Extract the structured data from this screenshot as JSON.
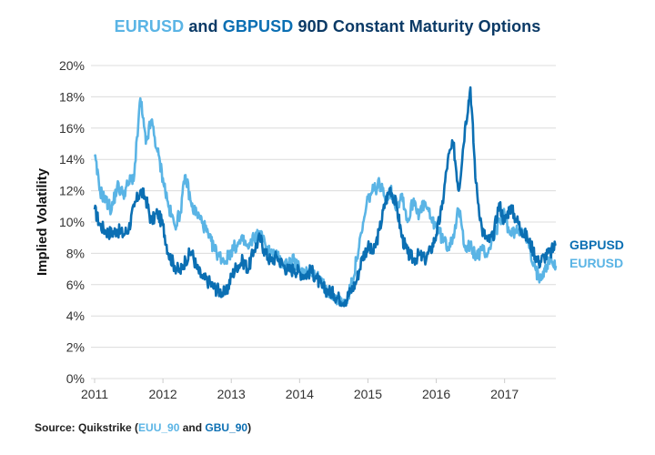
{
  "chart_data": {
    "type": "line",
    "title_parts": [
      {
        "text": "EURUSD",
        "series": "EURUSD"
      },
      {
        "text": " and ",
        "series": null
      },
      {
        "text": "GBPUSD",
        "series": "GBPUSD"
      },
      {
        "text": " 90D Constant Maturity Options",
        "series": null
      }
    ],
    "title": "EURUSD and GBPUSD 90D Constant Maturity Options",
    "xlabel": "",
    "ylabel": "Implied Volatility",
    "ylim": [
      0,
      20
    ],
    "xlim": [
      2011,
      2017.75
    ],
    "yticks": [
      "0%",
      "2%",
      "4%",
      "6%",
      "8%",
      "10%",
      "12%",
      "14%",
      "16%",
      "18%",
      "20%"
    ],
    "ytick_values": [
      0,
      2,
      4,
      6,
      8,
      10,
      12,
      14,
      16,
      18,
      20
    ],
    "xticks": [
      "2011",
      "2012",
      "2013",
      "2014",
      "2015",
      "2016",
      "2017"
    ],
    "xtick_values": [
      2011,
      2012,
      2013,
      2014,
      2015,
      2016,
      2017
    ],
    "grid": true,
    "legend_placement": "right",
    "series": [
      {
        "name": "GBPUSD",
        "color": "#0b6fb3",
        "x": [
          2011.0,
          2011.08,
          2011.17,
          2011.25,
          2011.33,
          2011.42,
          2011.5,
          2011.58,
          2011.67,
          2011.75,
          2011.83,
          2011.92,
          2012.0,
          2012.08,
          2012.17,
          2012.25,
          2012.33,
          2012.42,
          2012.5,
          2012.58,
          2012.67,
          2012.75,
          2012.83,
          2012.92,
          2013.0,
          2013.08,
          2013.17,
          2013.25,
          2013.33,
          2013.42,
          2013.5,
          2013.58,
          2013.67,
          2013.75,
          2013.83,
          2013.92,
          2014.0,
          2014.08,
          2014.17,
          2014.25,
          2014.33,
          2014.42,
          2014.5,
          2014.58,
          2014.67,
          2014.75,
          2014.83,
          2014.92,
          2015.0,
          2015.08,
          2015.17,
          2015.25,
          2015.33,
          2015.42,
          2015.5,
          2015.58,
          2015.67,
          2015.75,
          2015.83,
          2015.92,
          2016.0,
          2016.08,
          2016.17,
          2016.25,
          2016.33,
          2016.42,
          2016.5,
          2016.58,
          2016.67,
          2016.75,
          2016.83,
          2016.92,
          2017.0,
          2017.08,
          2017.17,
          2017.25,
          2017.33,
          2017.42,
          2017.5,
          2017.58,
          2017.67,
          2017.75
        ],
        "values": [
          10.8,
          9.8,
          9.4,
          9.3,
          9.5,
          9.2,
          9.6,
          11.0,
          12.0,
          11.5,
          10.0,
          10.6,
          9.8,
          8.0,
          7.2,
          6.8,
          7.6,
          8.1,
          7.0,
          6.4,
          6.2,
          5.8,
          5.6,
          5.4,
          6.5,
          7.2,
          7.5,
          7.0,
          8.2,
          9.0,
          8.0,
          7.5,
          7.8,
          7.3,
          6.9,
          7.0,
          6.8,
          6.6,
          6.9,
          6.4,
          5.8,
          5.6,
          5.4,
          5.1,
          5.0,
          5.6,
          6.2,
          7.8,
          8.4,
          8.0,
          9.5,
          11.2,
          12.2,
          11.0,
          9.0,
          8.0,
          7.6,
          7.9,
          7.6,
          8.2,
          9.2,
          10.8,
          14.0,
          15.0,
          12.0,
          16.0,
          18.6,
          12.5,
          9.5,
          8.8,
          9.0,
          11.2,
          10.0,
          11.0,
          10.2,
          9.5,
          9.0,
          8.2,
          7.4,
          7.8,
          8.0,
          8.6
        ]
      },
      {
        "name": "EURUSD",
        "color": "#5ab4e5",
        "x": [
          2011.0,
          2011.08,
          2011.17,
          2011.25,
          2011.33,
          2011.42,
          2011.5,
          2011.58,
          2011.67,
          2011.75,
          2011.83,
          2011.92,
          2012.0,
          2012.08,
          2012.17,
          2012.25,
          2012.33,
          2012.42,
          2012.5,
          2012.58,
          2012.67,
          2012.75,
          2012.83,
          2012.92,
          2013.0,
          2013.08,
          2013.17,
          2013.25,
          2013.33,
          2013.42,
          2013.5,
          2013.58,
          2013.67,
          2013.75,
          2013.83,
          2013.92,
          2014.0,
          2014.08,
          2014.17,
          2014.25,
          2014.33,
          2014.42,
          2014.5,
          2014.58,
          2014.67,
          2014.75,
          2014.83,
          2014.92,
          2015.0,
          2015.08,
          2015.17,
          2015.25,
          2015.33,
          2015.42,
          2015.5,
          2015.58,
          2015.67,
          2015.75,
          2015.83,
          2015.92,
          2016.0,
          2016.08,
          2016.17,
          2016.25,
          2016.33,
          2016.42,
          2016.5,
          2016.58,
          2016.67,
          2016.75,
          2016.83,
          2016.92,
          2017.0,
          2017.08,
          2017.17,
          2017.25,
          2017.33,
          2017.42,
          2017.5,
          2017.58,
          2017.67,
          2017.75
        ],
        "values": [
          14.2,
          12.0,
          11.3,
          10.8,
          12.3,
          11.8,
          12.5,
          13.0,
          17.9,
          15.0,
          16.5,
          14.5,
          12.8,
          11.0,
          9.8,
          10.5,
          13.0,
          11.0,
          10.5,
          10.0,
          9.0,
          8.3,
          7.8,
          7.5,
          8.2,
          8.5,
          8.8,
          8.3,
          9.0,
          9.3,
          8.5,
          8.0,
          7.8,
          7.3,
          7.4,
          7.5,
          7.0,
          6.8,
          7.0,
          6.5,
          6.0,
          5.6,
          5.3,
          5.0,
          4.8,
          5.8,
          7.5,
          9.5,
          11.5,
          12.0,
          12.5,
          11.5,
          12.0,
          11.0,
          11.8,
          10.0,
          11.5,
          10.5,
          11.2,
          10.2,
          9.8,
          9.0,
          8.4,
          9.2,
          10.8,
          8.5,
          8.4,
          7.8,
          8.2,
          8.0,
          9.0,
          10.0,
          10.5,
          9.2,
          9.4,
          9.6,
          8.8,
          7.2,
          6.5,
          7.0,
          7.6,
          7.2
        ]
      }
    ]
  },
  "source": {
    "prefix": "Source: Quikstrike (",
    "eur_code": "EUU_90",
    "middle": " and ",
    "gbp_code": "GBU_90",
    "suffix": ")"
  }
}
